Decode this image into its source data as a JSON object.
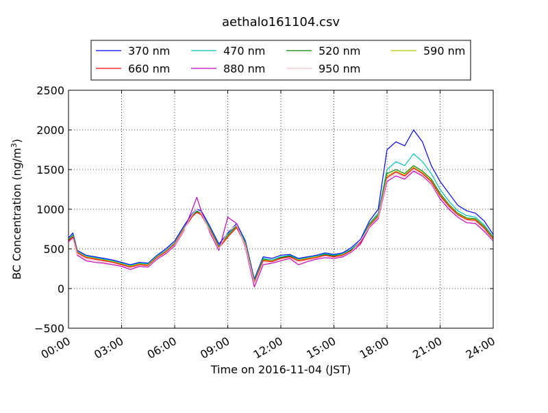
{
  "chart_data": {
    "type": "line",
    "title": "aethalo161104.csv",
    "xlabel": "Time on 2016-11-04 (JST)",
    "ylabel": "BC Concentration (ng/m",
    "ylabel_superscript": "3",
    "ylabel_suffix": ")",
    "x_unit": "hours",
    "xlim": [
      0,
      24
    ],
    "ylim": [
      -500,
      2500
    ],
    "x_ticks": [
      0,
      3,
      6,
      9,
      12,
      15,
      18,
      21,
      24
    ],
    "x_tick_labels": [
      "00:00",
      "03:00",
      "06:00",
      "09:00",
      "12:00",
      "15:00",
      "18:00",
      "21:00",
      "24:00"
    ],
    "y_ticks": [
      -500,
      0,
      500,
      1000,
      1500,
      2000,
      2500
    ],
    "y_tick_labels": [
      "−500",
      "0",
      "500",
      "1000",
      "1500",
      "2000",
      "2500"
    ],
    "grid": true,
    "legend_position": "top",
    "legend_columns": 4,
    "x": [
      0,
      0.25,
      0.5,
      1,
      1.5,
      2,
      2.5,
      3,
      3.5,
      4,
      4.5,
      5,
      5.5,
      6,
      6.5,
      7,
      7.25,
      7.5,
      8,
      8.5,
      9,
      9.5,
      10,
      10.5,
      11,
      11.5,
      12,
      12.5,
      13,
      13.5,
      14,
      14.5,
      15,
      15.5,
      16,
      16.5,
      17,
      17.5,
      18,
      18.5,
      19,
      19.5,
      20,
      20.5,
      21,
      21.5,
      22,
      22.5,
      23,
      23.5,
      24
    ],
    "series": [
      {
        "name": "370 nm",
        "color": "#0000ff",
        "values": [
          640,
          700,
          480,
          420,
          400,
          380,
          360,
          330,
          300,
          330,
          320,
          420,
          500,
          600,
          780,
          950,
          1000,
          980,
          780,
          560,
          700,
          820,
          600,
          120,
          400,
          380,
          420,
          430,
          380,
          400,
          420,
          450,
          430,
          450,
          520,
          620,
          850,
          1000,
          1750,
          1850,
          1800,
          2000,
          1850,
          1550,
          1350,
          1200,
          1050,
          980,
          950,
          850,
          680
        ]
      },
      {
        "name": "470 nm",
        "color": "#00bfbf",
        "values": [
          620,
          680,
          470,
          410,
          390,
          370,
          350,
          320,
          290,
          320,
          310,
          410,
          480,
          580,
          760,
          930,
          980,
          960,
          760,
          540,
          680,
          800,
          580,
          100,
          380,
          360,
          400,
          420,
          370,
          390,
          410,
          440,
          420,
          440,
          500,
          600,
          820,
          950,
          1500,
          1600,
          1550,
          1700,
          1600,
          1450,
          1250,
          1100,
          980,
          920,
          900,
          800,
          650
        ]
      },
      {
        "name": "520 nm",
        "color": "#008000",
        "values": [
          610,
          670,
          460,
          400,
          380,
          360,
          340,
          310,
          280,
          310,
          300,
          400,
          470,
          570,
          750,
          920,
          970,
          950,
          750,
          530,
          670,
          790,
          570,
          90,
          370,
          350,
          390,
          410,
          360,
          380,
          400,
          430,
          410,
          430,
          490,
          590,
          810,
          930,
          1450,
          1500,
          1450,
          1550,
          1480,
          1380,
          1200,
          1060,
          950,
          890,
          880,
          780,
          640
        ]
      },
      {
        "name": "590 nm",
        "color": "#bfbf00",
        "values": [
          600,
          660,
          460,
          400,
          380,
          360,
          340,
          310,
          280,
          310,
          300,
          400,
          470,
          570,
          750,
          920,
          960,
          940,
          740,
          520,
          660,
          780,
          560,
          80,
          360,
          350,
          380,
          400,
          360,
          380,
          400,
          420,
          400,
          430,
          480,
          580,
          800,
          920,
          1420,
          1480,
          1430,
          1530,
          1460,
          1360,
          1180,
          1050,
          940,
          880,
          870,
          770,
          630
        ]
      },
      {
        "name": "660 nm",
        "color": "#ff0000",
        "values": [
          600,
          650,
          450,
          390,
          370,
          350,
          330,
          300,
          270,
          300,
          290,
          390,
          460,
          560,
          740,
          910,
          960,
          930,
          730,
          510,
          650,
          770,
          550,
          70,
          350,
          340,
          380,
          400,
          350,
          370,
          390,
          420,
          400,
          420,
          480,
          580,
          790,
          910,
          1400,
          1470,
          1420,
          1520,
          1450,
          1350,
          1170,
          1040,
          930,
          870,
          860,
          760,
          620
        ]
      },
      {
        "name": "880 nm",
        "color": "#bf00bf",
        "values": [
          590,
          640,
          420,
          350,
          330,
          320,
          300,
          280,
          240,
          280,
          270,
          370,
          440,
          540,
          720,
          1000,
          1150,
          980,
          700,
          480,
          900,
          820,
          520,
          20,
          300,
          320,
          350,
          380,
          300,
          340,
          370,
          390,
          380,
          400,
          460,
          560,
          770,
          880,
          1350,
          1420,
          1380,
          1480,
          1420,
          1320,
          1130,
          1000,
          900,
          830,
          820,
          720,
          600
        ]
      },
      {
        "name": "950 nm",
        "color": "#ffc0cb",
        "values": [
          580,
          630,
          430,
          370,
          350,
          330,
          310,
          290,
          260,
          290,
          280,
          380,
          450,
          550,
          730,
          940,
          1000,
          950,
          720,
          500,
          720,
          800,
          540,
          60,
          330,
          330,
          360,
          390,
          330,
          360,
          380,
          410,
          390,
          410,
          470,
          600,
          780,
          900,
          1380,
          1450,
          1400,
          1500,
          1430,
          1330,
          1150,
          1020,
          920,
          860,
          840,
          740,
          610
        ]
      }
    ]
  }
}
